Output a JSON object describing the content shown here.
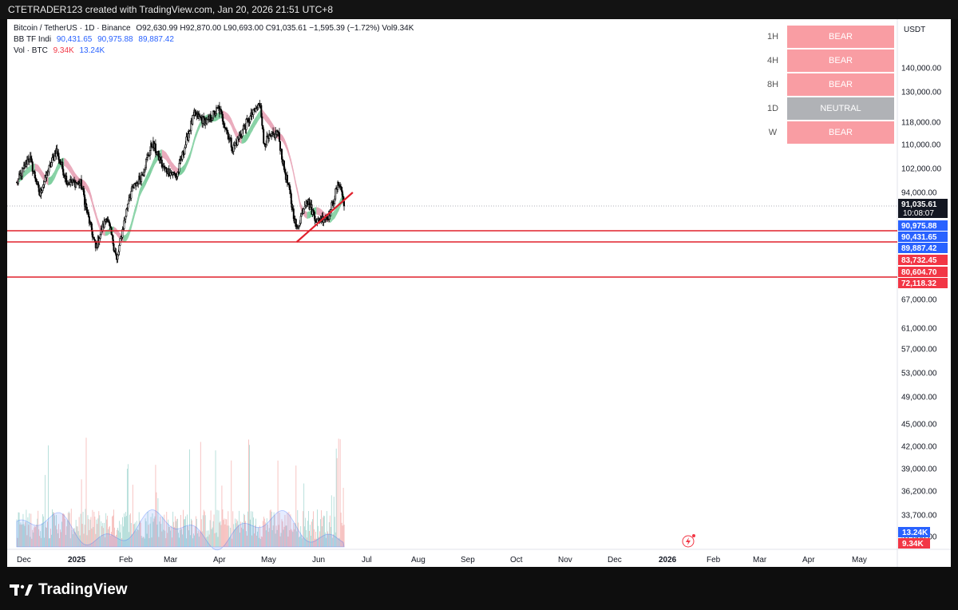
{
  "header": {
    "text": "CTETRADER123 created with TradingView.com, Jan 20, 2026 21:51 UTC+8"
  },
  "legend": {
    "title": "Bitcoin / TetherUS · 1D · Binance",
    "ohlc": "O92,630.99 H92,870.00 L90,693.00 C91,035.61 −1,595.39 (−1.72%) Vol9.34K",
    "bb_label": "BB TF Indi",
    "bb_values": [
      "90,431.65",
      "90,975.88",
      "89,887.42"
    ],
    "vol_label": "Vol · BTC",
    "vol_values": [
      "9.34K",
      "13.24K"
    ]
  },
  "timeframes": [
    {
      "tf": "1H",
      "status": "BEAR"
    },
    {
      "tf": "4H",
      "status": "BEAR"
    },
    {
      "tf": "8H",
      "status": "BEAR"
    },
    {
      "tf": "1D",
      "status": "NEUTRAL"
    },
    {
      "tf": "W",
      "status": "BEAR"
    }
  ],
  "footer": {
    "brand": "TradingView"
  },
  "colors": {
    "bear": "#f99da3",
    "neutral": "#b0b2b6",
    "up": "#26a69a",
    "down": "#ef5350",
    "blue": "#2962ff",
    "levels": "#e0202c"
  },
  "chart_data": {
    "type": "candlestick",
    "currency": "USDT",
    "y_axis_ticks": [
      140000,
      130000,
      118000,
      110000,
      102000,
      94000,
      67000,
      61000,
      57000,
      53000,
      49000,
      45000,
      42000,
      39000,
      36200,
      33700,
      31000
    ],
    "y_axis_tick_labels": [
      "140,000.00",
      "130,000.00",
      "118,000.00",
      "110,000.00",
      "102,000.00",
      "94,000.00",
      "67,000.00",
      "61,000.00",
      "57,000.00",
      "53,000.00",
      "49,000.00",
      "45,000.00",
      "42,000.00",
      "39,000.00",
      "36,200.00",
      "33,700.00",
      "31,000.00"
    ],
    "x_axis_labels": [
      "Dec",
      "2025",
      "Feb",
      "Mar",
      "Apr",
      "May",
      "Jun",
      "Jul",
      "Aug",
      "Sep",
      "Oct",
      "Nov",
      "Dec",
      "2026",
      "Feb",
      "Mar",
      "Apr",
      "May"
    ],
    "price_path": [
      [
        "2024-12-01",
        97000
      ],
      [
        "2024-12-17",
        106000
      ],
      [
        "2024-12-30",
        93500
      ],
      [
        "2025-01-20",
        108000
      ],
      [
        "2025-02-03",
        97500
      ],
      [
        "2025-02-20",
        97000
      ],
      [
        "2025-03-04",
        85500
      ],
      [
        "2025-03-11",
        79000
      ],
      [
        "2025-03-25",
        88000
      ],
      [
        "2025-04-07",
        76000
      ],
      [
        "2025-04-22",
        93000
      ],
      [
        "2025-05-08",
        99500
      ],
      [
        "2025-05-22",
        110500
      ],
      [
        "2025-06-05",
        102000
      ],
      [
        "2025-06-22",
        99500
      ],
      [
        "2025-07-14",
        121000
      ],
      [
        "2025-07-30",
        118000
      ],
      [
        "2025-08-14",
        123500
      ],
      [
        "2025-09-01",
        108500
      ],
      [
        "2025-09-18",
        117500
      ],
      [
        "2025-10-06",
        125500
      ],
      [
        "2025-10-10",
        110500
      ],
      [
        "2025-10-28",
        114500
      ],
      [
        "2025-11-04",
        103000
      ],
      [
        "2025-11-21",
        84000
      ],
      [
        "2025-12-03",
        93000
      ],
      [
        "2025-12-17",
        86500
      ],
      [
        "2026-01-01",
        88500
      ],
      [
        "2026-01-14",
        97500
      ],
      [
        "2026-01-20",
        91035.61
      ]
    ],
    "horizontal_levels": [
      83732.45,
      80604.7,
      72118.32
    ],
    "trendline": [
      [
        "2025-11-21",
        80604.7
      ],
      [
        "2026-01-31",
        94000
      ]
    ],
    "axis_badges": [
      {
        "value": "91,035.61",
        "sub": "10:08:07",
        "color": "#131722"
      },
      {
        "value": "90,975.88",
        "color": "#2962ff"
      },
      {
        "value": "90,431.65",
        "color": "#2962ff"
      },
      {
        "value": "89,887.42",
        "color": "#2962ff"
      },
      {
        "value": "83,732.45",
        "color": "#f23645"
      },
      {
        "value": "80,604.70",
        "color": "#f23645"
      },
      {
        "value": "72,118.32",
        "color": "#f23645"
      }
    ],
    "volume_badges": [
      {
        "value": "13.24K",
        "color": "#2962ff"
      },
      {
        "value": "9.34K",
        "color": "#f23645"
      }
    ]
  }
}
